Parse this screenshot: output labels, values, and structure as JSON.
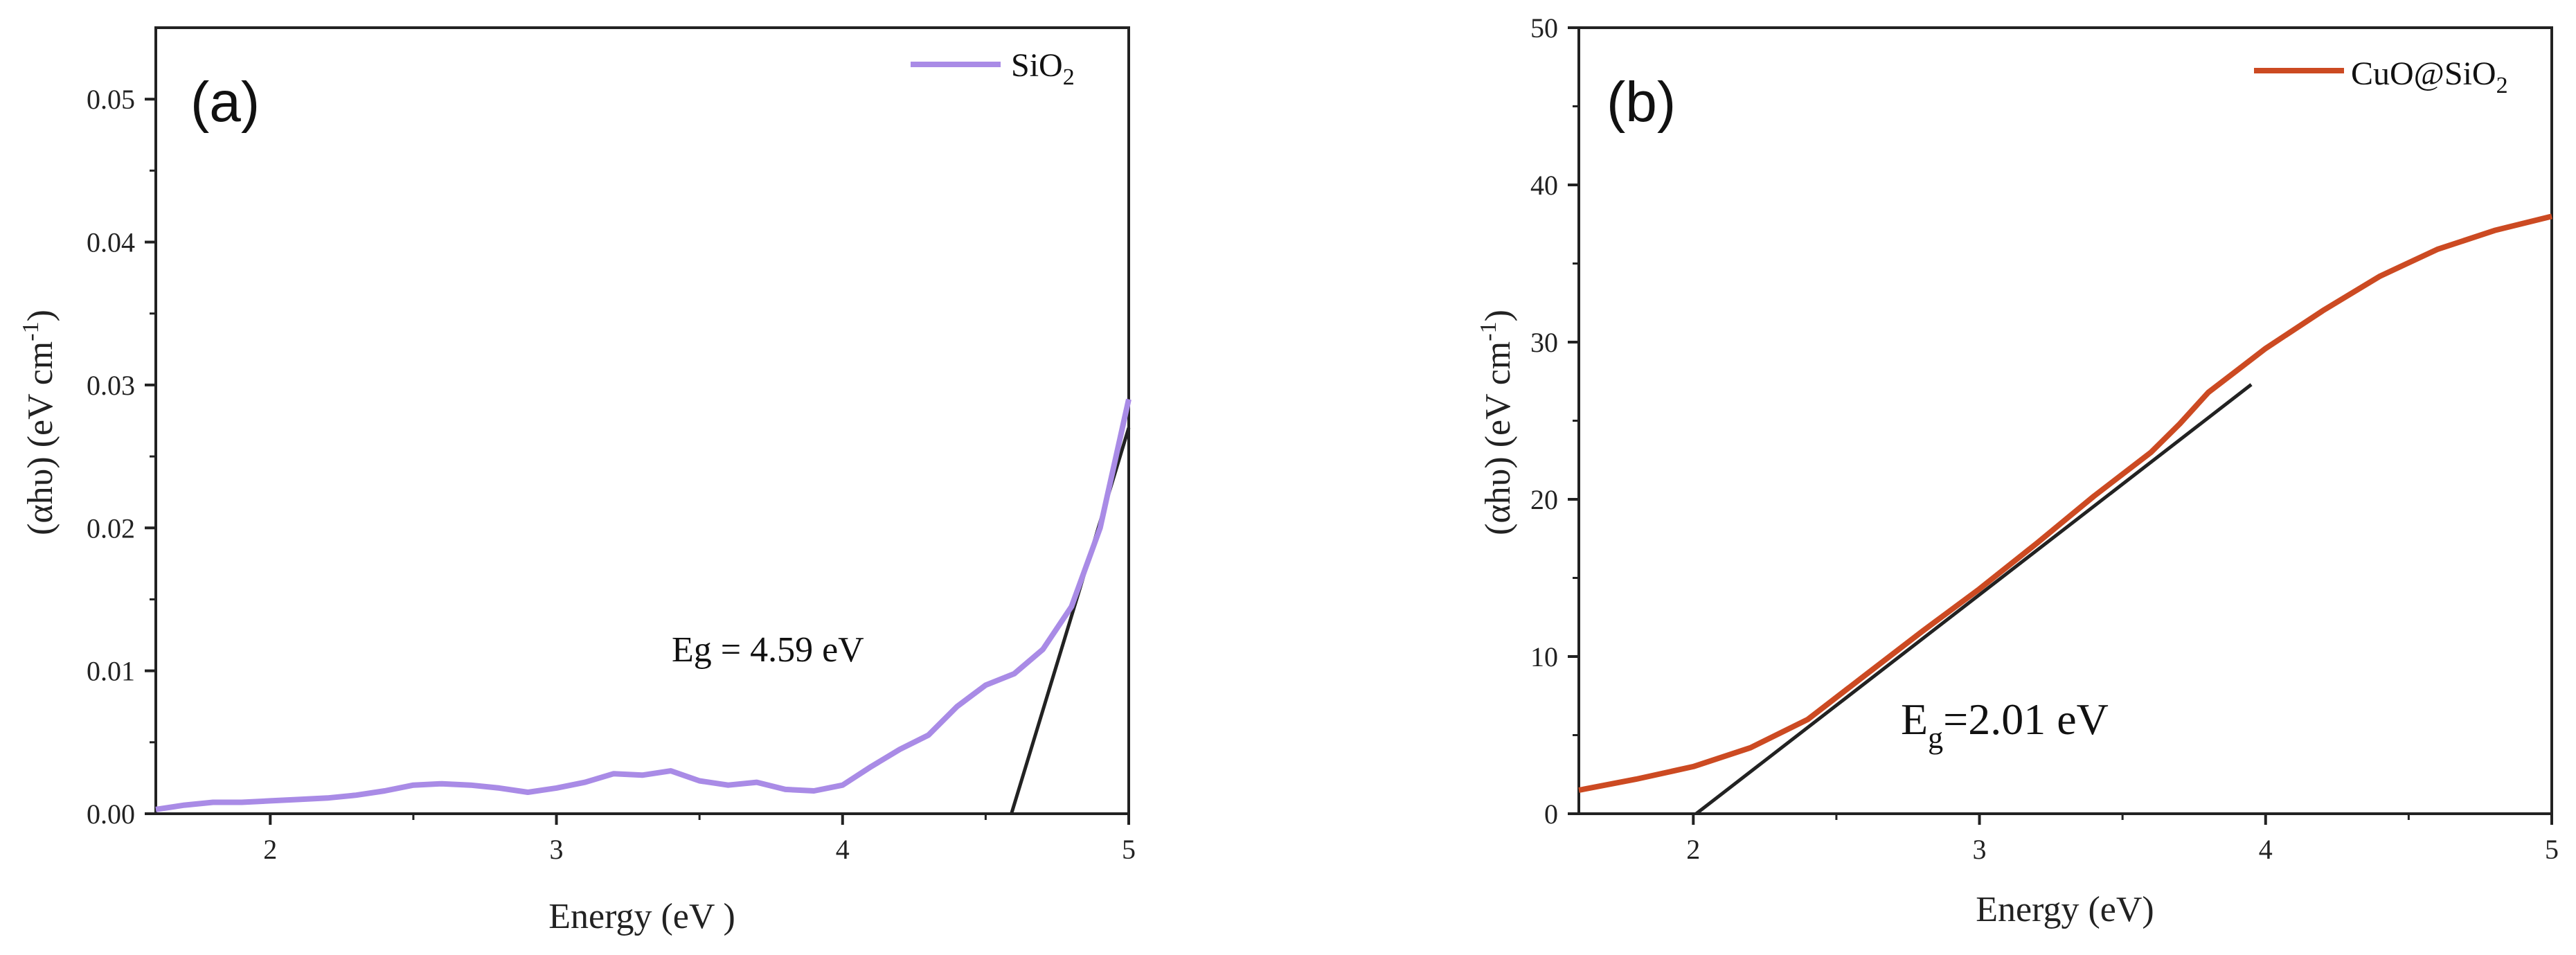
{
  "chart_data": [
    {
      "type": "line",
      "panel_label": "(a)",
      "xlabel": "Energy (eV )",
      "ylabel": "(αhυ) (eV cm⁻¹)",
      "xlim": [
        1.6,
        5.0
      ],
      "ylim": [
        0.0,
        0.055
      ],
      "xticks": [
        "2",
        "3",
        "4",
        "5"
      ],
      "yticks": [
        "0.00",
        "0.01",
        "0.02",
        "0.03",
        "0.04",
        "0.05"
      ],
      "legend": "SiO₂",
      "color": "#a98be6",
      "annotation": "Eg = 4.59 eV",
      "series": [
        {
          "name": "SiO₂",
          "x": [
            1.6,
            1.7,
            1.8,
            1.9,
            2.0,
            2.1,
            2.2,
            2.3,
            2.4,
            2.5,
            2.6,
            2.7,
            2.8,
            2.9,
            3.0,
            3.1,
            3.2,
            3.3,
            3.4,
            3.5,
            3.6,
            3.7,
            3.8,
            3.9,
            4.0,
            4.1,
            4.2,
            4.3,
            4.4,
            4.5,
            4.6,
            4.7,
            4.8,
            4.9,
            5.0
          ],
          "y": [
            0.0003,
            0.0006,
            0.0008,
            0.0008,
            0.0009,
            0.001,
            0.0011,
            0.0013,
            0.0016,
            0.002,
            0.0021,
            0.002,
            0.0018,
            0.0015,
            0.0018,
            0.0022,
            0.0028,
            0.0027,
            0.003,
            0.0023,
            0.002,
            0.0022,
            0.0017,
            0.0016,
            0.002,
            0.0033,
            0.0045,
            0.0055,
            0.0075,
            0.009,
            0.0098,
            0.0115,
            0.0145,
            0.02,
            0.029
          ]
        }
      ],
      "tangent": {
        "x": [
          4.59,
          5.0
        ],
        "y": [
          0.0,
          0.027
        ]
      }
    },
    {
      "type": "line",
      "panel_label": "(b)",
      "xlabel": "Energy (eV)",
      "ylabel": "(αhυ) (eV cm⁻¹)",
      "xlim": [
        1.6,
        5.0
      ],
      "ylim": [
        0,
        50
      ],
      "xticks": [
        "2",
        "3",
        "4",
        "5"
      ],
      "yticks": [
        "0",
        "10",
        "20",
        "30",
        "40",
        "50"
      ],
      "legend": "CuO@SiO₂",
      "color": "#cc4a22",
      "annotation": "E",
      "annotation_sub": "g",
      "annotation_rest": "=2.01 eV",
      "series": [
        {
          "name": "CuO@SiO₂",
          "x": [
            1.6,
            1.8,
            2.0,
            2.2,
            2.4,
            2.6,
            2.8,
            3.0,
            3.2,
            3.4,
            3.6,
            3.7,
            3.8,
            3.9,
            4.0,
            4.2,
            4.4,
            4.6,
            4.8,
            5.0
          ],
          "y": [
            1.5,
            2.2,
            3.0,
            4.2,
            6.0,
            8.8,
            11.6,
            14.3,
            17.2,
            20.2,
            23.0,
            24.8,
            26.8,
            28.2,
            29.6,
            32.0,
            34.2,
            35.9,
            37.1,
            38.0
          ]
        }
      ],
      "tangent": {
        "x": [
          2.01,
          3.95
        ],
        "y": [
          0.0,
          27.3
        ]
      }
    }
  ]
}
